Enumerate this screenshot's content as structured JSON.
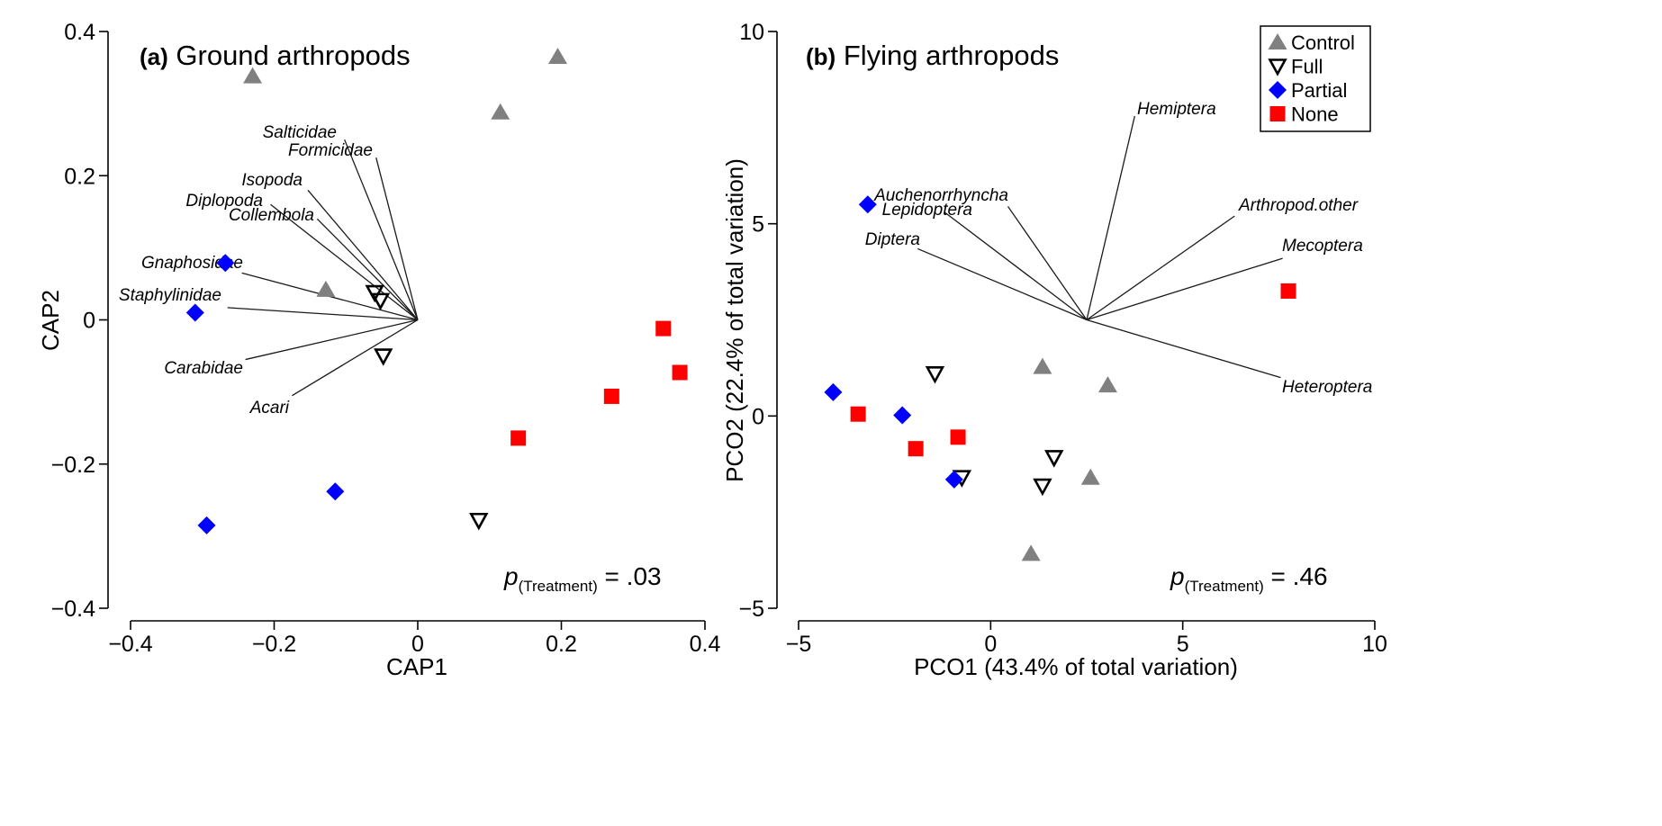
{
  "legend": [
    {
      "marker": "triangle-up",
      "label": "Control",
      "color": "#808080"
    },
    {
      "marker": "triangle-down-open",
      "label": "Full",
      "color": "#000000"
    },
    {
      "marker": "diamond",
      "label": "Partial",
      "color": "#0000ff"
    },
    {
      "marker": "square",
      "label": "None",
      "color": "#ff0000"
    }
  ],
  "chart_data": [
    {
      "type": "scatter",
      "panel_letter": "(a)",
      "title": "Ground arthropods",
      "xlabel": "CAP1",
      "ylabel": "CAP2",
      "xlim": [
        -0.4,
        0.4
      ],
      "ylim": [
        -0.4,
        0.4
      ],
      "xticks": [
        -0.4,
        -0.2,
        0,
        0.2,
        0.4
      ],
      "xtick_labels": [
        "−0.4",
        "−0.2",
        "0",
        "0.2",
        "0.4"
      ],
      "yticks": [
        -0.4,
        -0.2,
        0,
        0.2,
        0.4
      ],
      "ytick_labels": [
        "−0.4",
        "−0.2",
        "0",
        "0.2",
        "0.4"
      ],
      "p_symbol": "p",
      "p_subscript": "(Treatment)",
      "p_value": " = .03",
      "vector_origin": [
        0,
        0
      ],
      "vectors": [
        {
          "label": "Salticidae",
          "x": -0.102,
          "y": 0.25
        },
        {
          "label": "Formicidae",
          "x": -0.058,
          "y": 0.225
        },
        {
          "label": "Isopoda",
          "x": -0.153,
          "y": 0.18
        },
        {
          "label": "Diplopoda",
          "x": -0.205,
          "y": 0.16
        },
        {
          "label": "Collembola",
          "x": -0.14,
          "y": 0.14
        },
        {
          "label": "Gnaphosidae",
          "x": -0.245,
          "y": 0.065
        },
        {
          "label": "Staphylinidae",
          "x": -0.265,
          "y": 0.017
        },
        {
          "label": "Carabidae",
          "x": -0.24,
          "y": -0.055
        },
        {
          "label": "Acari",
          "x": -0.175,
          "y": -0.105
        }
      ],
      "series": [
        {
          "name": "Control",
          "marker": "triangle-up",
          "color": "#808080",
          "points": [
            [
              -0.23,
              0.338
            ],
            [
              0.195,
              0.365
            ],
            [
              0.115,
              0.288
            ],
            [
              -0.128,
              0.042
            ]
          ]
        },
        {
          "name": "Full",
          "marker": "triangle-down-open",
          "color": "#000000",
          "points": [
            [
              -0.06,
              0.038
            ],
            [
              -0.052,
              0.027
            ],
            [
              -0.048,
              -0.05
            ],
            [
              0.085,
              -0.278
            ]
          ]
        },
        {
          "name": "Partial",
          "marker": "diamond",
          "color": "#0000ff",
          "points": [
            [
              -0.268,
              0.079
            ],
            [
              -0.31,
              0.01
            ],
            [
              -0.115,
              -0.238
            ],
            [
              -0.294,
              -0.285
            ]
          ]
        },
        {
          "name": "None",
          "marker": "square",
          "color": "#ff0000",
          "points": [
            [
              0.342,
              -0.012
            ],
            [
              0.365,
              -0.073
            ],
            [
              0.27,
              -0.106
            ],
            [
              0.14,
              -0.164
            ]
          ]
        }
      ]
    },
    {
      "type": "scatter",
      "panel_letter": "(b)",
      "title": "Flying arthropods",
      "xlabel": "PCO1 (43.4% of total variation)",
      "ylabel": "PCO2 (22.4% of total variation)",
      "xlim": [
        -5,
        10
      ],
      "ylim": [
        -5,
        10
      ],
      "xticks": [
        -5,
        0,
        5,
        10
      ],
      "xtick_labels": [
        "−5",
        "0",
        "5",
        "10"
      ],
      "yticks": [
        -5,
        0,
        5,
        10
      ],
      "ytick_labels": [
        "−5",
        "0",
        "5",
        "10"
      ],
      "p_symbol": "p",
      "p_subscript": "(Treatment)",
      "p_value": " = .46",
      "vector_origin": [
        2.5,
        2.5
      ],
      "vectors": [
        {
          "label": "Hemiptera",
          "x": 3.75,
          "y": 7.8
        },
        {
          "label": "Auchenorrhyncha",
          "x": 0.45,
          "y": 5.45
        },
        {
          "label": "Lepidoptera",
          "x": -1.2,
          "y": 5.3
        },
        {
          "label": "Diptera",
          "x": -1.9,
          "y": 4.35
        },
        {
          "label": "Arthropod.other",
          "x": 6.35,
          "y": 5.2
        },
        {
          "label": "Mecoptera",
          "x": 7.6,
          "y": 4.1
        },
        {
          "label": "Heteroptera",
          "x": 7.55,
          "y": 1.0
        }
      ],
      "series": [
        {
          "name": "Control",
          "marker": "triangle-up",
          "color": "#808080",
          "points": [
            [
              1.35,
              1.28
            ],
            [
              3.05,
              0.8
            ],
            [
              2.6,
              -1.6
            ],
            [
              1.05,
              -3.58
            ]
          ]
        },
        {
          "name": "Full",
          "marker": "triangle-down-open",
          "color": "#000000",
          "points": [
            [
              -1.45,
              1.1
            ],
            [
              1.65,
              -1.08
            ],
            [
              -0.75,
              -1.6
            ],
            [
              1.35,
              -1.82
            ]
          ]
        },
        {
          "name": "Partial",
          "marker": "diamond",
          "color": "#0000ff",
          "points": [
            [
              -3.2,
              5.5
            ],
            [
              -4.1,
              0.62
            ],
            [
              -2.3,
              0.02
            ],
            [
              -0.95,
              -1.65
            ]
          ]
        },
        {
          "name": "None",
          "marker": "square",
          "color": "#ff0000",
          "points": [
            [
              7.75,
              3.25
            ],
            [
              -3.45,
              0.05
            ],
            [
              -0.85,
              -0.55
            ],
            [
              -1.95,
              -0.85
            ]
          ]
        }
      ]
    }
  ]
}
